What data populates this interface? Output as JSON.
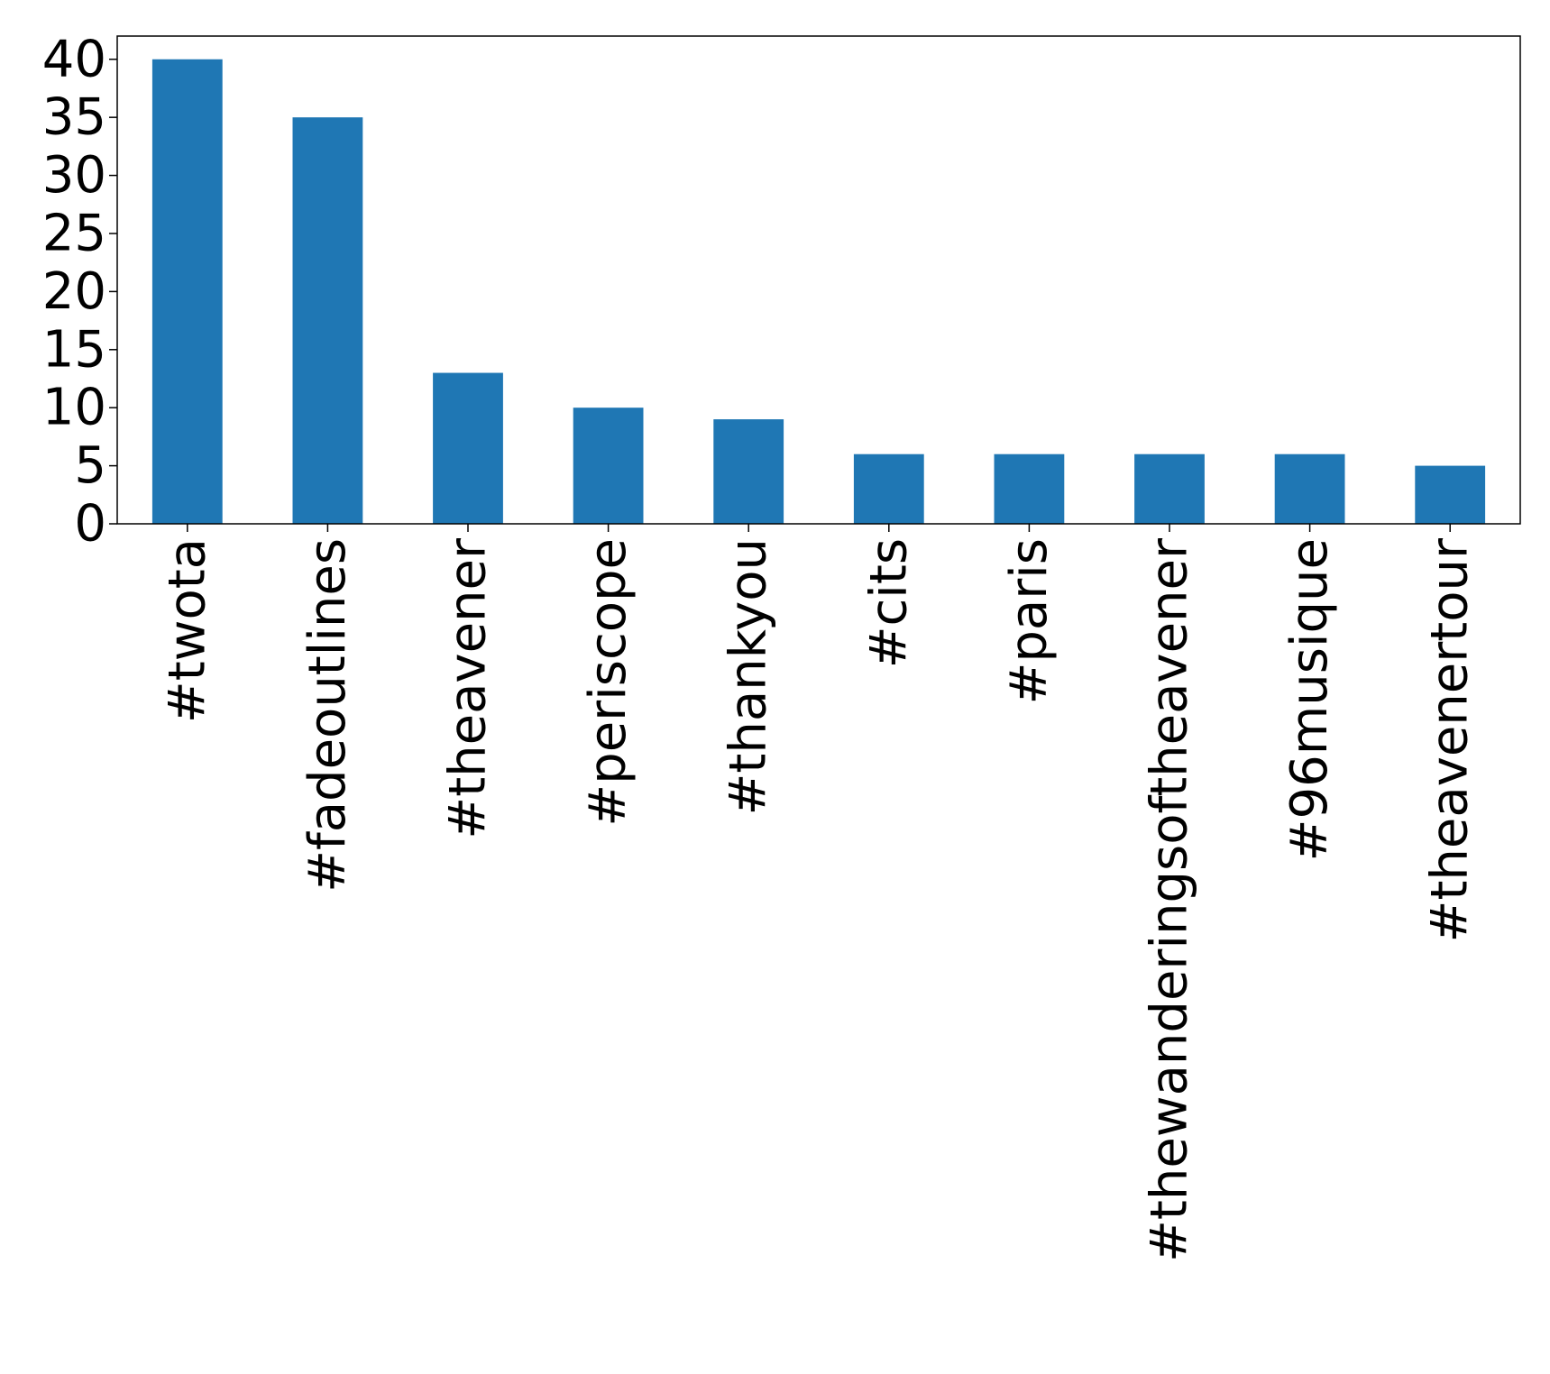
{
  "chart_data": {
    "type": "bar",
    "title": "",
    "xlabel": "",
    "ylabel": "",
    "categories": [
      "#twota",
      "#fadeoutlines",
      "#theavener",
      "#periscope",
      "#thankyou",
      "#cits",
      "#paris",
      "#thewanderingsoftheavener",
      "#96musique",
      "#theavenertour"
    ],
    "values": [
      40,
      35,
      13,
      10,
      9,
      6,
      6,
      6,
      6,
      5
    ],
    "ylim": [
      0,
      42
    ],
    "yticks": [
      0,
      5,
      10,
      15,
      20,
      25,
      30,
      35,
      40
    ],
    "grid": false,
    "legend": "none",
    "bar_color": "#1f77b4"
  }
}
